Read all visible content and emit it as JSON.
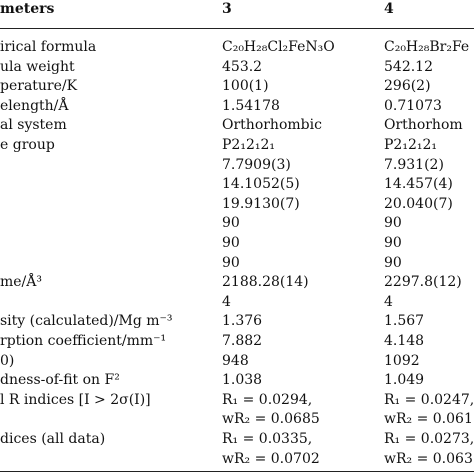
{
  "table": {
    "header": [
      "meters",
      "3",
      "4"
    ],
    "rows": [
      {
        "label": "irical formula",
        "c3": "C₂₀H₂₈Cl₂FeN₃O",
        "c4": "C₂₀H₂₈Br₂Fe"
      },
      {
        "label": "ula weight",
        "c3": "453.2",
        "c4": "542.12"
      },
      {
        "label": "perature/K",
        "c3": "100(1)",
        "c4": "296(2)"
      },
      {
        "label": "elength/Å",
        "c3": "1.54178",
        "c4": "0.71073"
      },
      {
        "label": "al system",
        "c3": "Orthorhombic",
        "c4": "Orthorhom"
      },
      {
        "label": "e group",
        "c3": "P2₁2₁2₁",
        "c4": "P2₁2₁2₁"
      },
      {
        "c3": "7.7909(3)",
        "c4": "7.931(2)"
      },
      {
        "c3": "14.1052(5)",
        "c4": "14.457(4)"
      },
      {
        "c3": "19.9130(7)",
        "c4": "20.040(7)"
      },
      {
        "c3": "90",
        "c4": "90"
      },
      {
        "c3": "90",
        "c4": "90"
      },
      {
        "c3": "90",
        "c4": "90"
      },
      {
        "label": "me/Å³",
        "c3": "2188.28(14)",
        "c4": "2297.8(12)"
      },
      {
        "c3": "4",
        "c4": "4"
      },
      {
        "label": "sity (calculated)/Mg m⁻³",
        "c3": "1.376",
        "c4": "1.567"
      },
      {
        "label": "rption coefficient/mm⁻¹",
        "c3": "7.882",
        "c4": "4.148"
      },
      {
        "label": "0)",
        "c3": "948",
        "c4": "1092"
      },
      {
        "label": "dness-of-fit on F²",
        "c3": "1.038",
        "c4": "1.049"
      },
      {
        "label": "l R indices [I > 2σ(I)]",
        "c3": "R₁ = 0.0294,",
        "c4": "R₁ = 0.0247,"
      },
      {
        "c3": "wR₂ = 0.0685",
        "c4": "wR₂ = 0.061"
      },
      {
        "label": "dices (all data)",
        "c3": "R₁ = 0.0335,",
        "c4": "R₁ = 0.0273,"
      },
      {
        "c3": "wR₂ = 0.0702",
        "c4": "wR₂ = 0.063"
      }
    ]
  }
}
